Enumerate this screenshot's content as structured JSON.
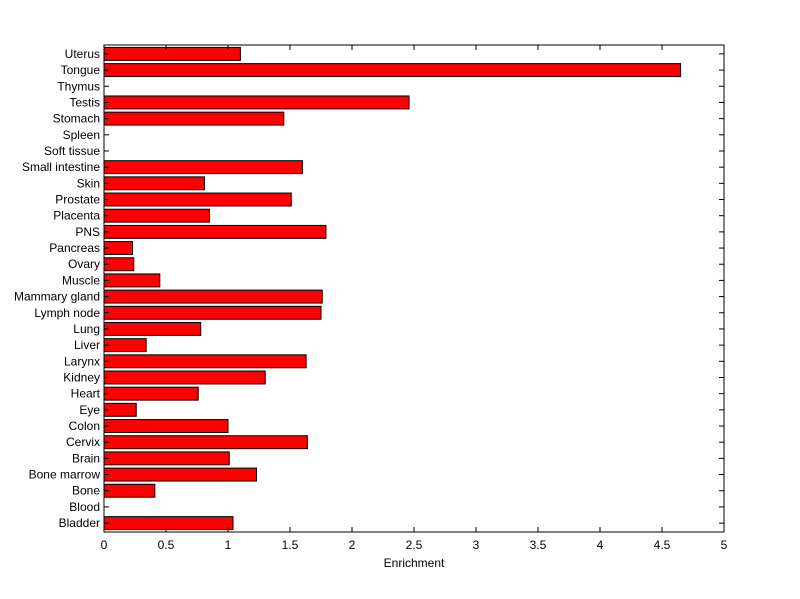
{
  "chart_data": {
    "type": "bar",
    "orientation": "horizontal",
    "title": "",
    "xlabel": "Enrichment",
    "ylabel": "",
    "xlim": [
      0,
      5
    ],
    "xticks": [
      0,
      0.5,
      1,
      1.5,
      2,
      2.5,
      3,
      3.5,
      4,
      4.5,
      5
    ],
    "xtick_labels": [
      "0",
      "0.5",
      "1",
      "1.5",
      "2",
      "2.5",
      "3",
      "3.5",
      "4",
      "4.5",
      "5"
    ],
    "grid": false,
    "legend": "none",
    "bar_color": "#ff0000",
    "edge_color": "#000000",
    "categories": [
      "Uterus",
      "Tongue",
      "Thymus",
      "Testis",
      "Stomach",
      "Spleen",
      "Soft tissue",
      "Small intestine",
      "Skin",
      "Prostate",
      "Placenta",
      "PNS",
      "Pancreas",
      "Ovary",
      "Muscle",
      "Mammary gland",
      "Lymph node",
      "Lung",
      "Liver",
      "Larynx",
      "Kidney",
      "Heart",
      "Eye",
      "Colon",
      "Cervix",
      "Brain",
      "Bone marrow",
      "Bone",
      "Blood",
      "Bladder"
    ],
    "values": [
      1.1,
      4.65,
      0,
      2.46,
      1.45,
      0,
      0,
      1.6,
      0.81,
      1.51,
      0.85,
      1.79,
      0.23,
      0.24,
      0.45,
      1.76,
      1.75,
      0.78,
      0.34,
      1.63,
      1.3,
      0.76,
      0.26,
      1.0,
      1.64,
      1.01,
      1.23,
      0.41,
      0,
      1.04
    ]
  }
}
